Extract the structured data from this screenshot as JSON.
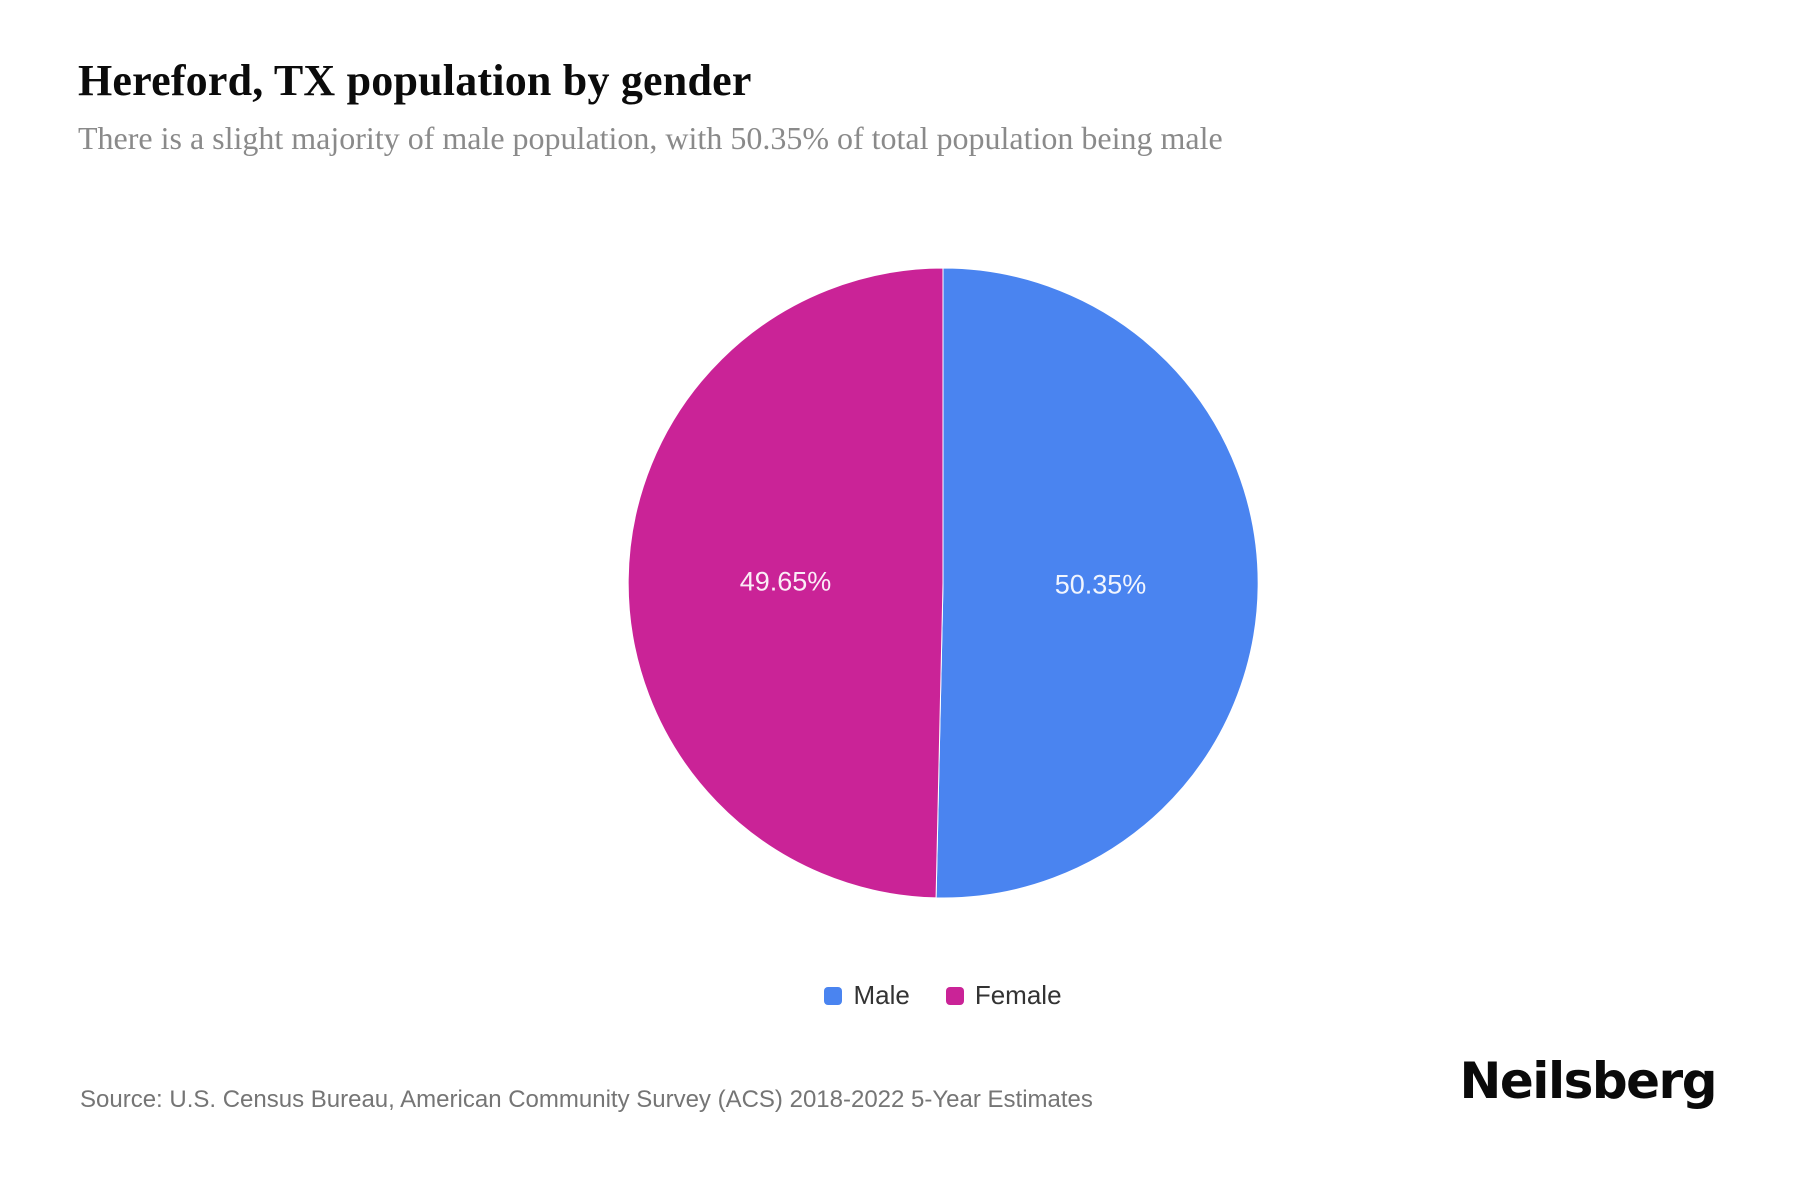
{
  "header": {
    "title": "Hereford, TX population by gender",
    "subtitle": "There is a slight majority of male population, with 50.35% of total population being male"
  },
  "chart_data": {
    "type": "pie",
    "title": "Hereford, TX population by gender",
    "start_angle_deg": 0,
    "direction": "clockwise",
    "legend_position": "bottom",
    "slice_label_color": "#FFFFFF",
    "series": [
      {
        "name": "Male",
        "value": 50.35,
        "label": "50.35%",
        "color": "#4A84F0"
      },
      {
        "name": "Female",
        "value": 49.65,
        "label": "49.65%",
        "color": "#CA2397"
      }
    ]
  },
  "legend": {
    "items": [
      {
        "label": "Male",
        "color": "#4A84F0"
      },
      {
        "label": "Female",
        "color": "#CA2397"
      }
    ]
  },
  "footer": {
    "source": "Source: U.S. Census Bureau, American Community Survey (ACS) 2018-2022 5-Year Estimates",
    "logo_text": "Neilsberg"
  }
}
